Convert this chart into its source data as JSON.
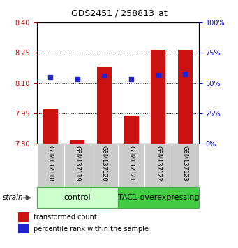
{
  "title": "GDS2451 / 258813_at",
  "samples": [
    "GSM137118",
    "GSM137119",
    "GSM137120",
    "GSM137121",
    "GSM137122",
    "GSM137123"
  ],
  "red_values": [
    7.97,
    7.82,
    8.18,
    7.94,
    8.265,
    8.265
  ],
  "blue_values": [
    8.13,
    8.12,
    8.135,
    8.12,
    8.14,
    8.145
  ],
  "baseline": 7.8,
  "ylim": [
    7.8,
    8.4
  ],
  "yticks_left": [
    7.8,
    7.95,
    8.1,
    8.25,
    8.4
  ],
  "yticks_right": [
    0,
    25,
    50,
    75,
    100
  ],
  "groups": [
    {
      "label": "control",
      "indices": [
        0,
        1,
        2
      ],
      "color": "#ccffcc",
      "border": "#44aa44"
    },
    {
      "label": "TAC1 overexpressing",
      "indices": [
        3,
        4,
        5
      ],
      "color": "#44cc44",
      "border": "#44aa44"
    }
  ],
  "bar_color": "#cc1111",
  "dot_color": "#2222cc",
  "bar_width": 0.55,
  "dot_size": 18,
  "left_tick_color": "#cc0000",
  "right_tick_color": "#0000cc",
  "legend_red": "transformed count",
  "legend_blue": "percentile rank within the sample",
  "strain_label": "strain",
  "figure_bg": "white",
  "tick_fontsize": 7,
  "title_fontsize": 9,
  "sample_fontsize": 6,
  "group_fontsize": 8,
  "legend_fontsize": 7
}
